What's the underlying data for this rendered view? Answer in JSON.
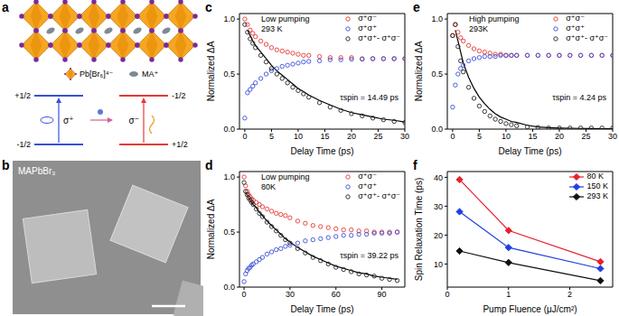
{
  "diagram": {
    "panel": "a",
    "key_items": [
      "Pb[Br₆]⁴⁻",
      "MA⁺"
    ],
    "left": {
      "upper": "+1/2",
      "lower": "-1/2",
      "transition": "σ⁺"
    },
    "right": {
      "upper": "-1/2",
      "lower": "+1/2",
      "transition": "σ⁻"
    }
  },
  "image": {
    "panel": "b",
    "label": "MAPbBr₃"
  },
  "chart_data": [
    {
      "panel": "c",
      "type": "scatter",
      "annotation": [
        "Low pumping",
        "293 K"
      ],
      "fit_annotation": "τspin = 14.49 ps",
      "x_label": "Delay Time (ps)",
      "y_label": "Normalized ΔA",
      "xlim": [
        -1,
        30
      ],
      "xticks": [
        0,
        5,
        10,
        15,
        20,
        25,
        30
      ],
      "ylim": [
        0,
        1.05
      ],
      "yticks": [
        {
          "value": 0,
          "label": "0.0"
        },
        0.5,
        {
          "value": 1,
          "label": "1.0"
        }
      ],
      "legend": "upper right",
      "x": [
        0,
        0.5,
        1,
        1.5,
        2,
        3,
        4,
        5,
        6,
        7,
        8,
        9,
        10,
        11,
        12,
        14,
        16,
        18,
        20,
        22,
        24,
        26,
        28,
        30
      ],
      "series": [
        {
          "name": "σ⁺σ⁻",
          "color": "#e53935",
          "marker": "open_circle",
          "values": [
            1.0,
            0.95,
            0.9,
            0.87,
            0.84,
            0.8,
            0.77,
            0.74,
            0.72,
            0.71,
            0.7,
            0.69,
            0.68,
            0.67,
            0.67,
            0.66,
            0.65,
            0.65,
            0.65,
            0.64,
            0.64,
            0.64,
            0.64,
            0.64
          ]
        },
        {
          "name": "σ⁺σ⁺",
          "color": "#3a4fd8",
          "marker": "open_circle",
          "values": [
            0.1,
            0.33,
            0.36,
            0.39,
            0.42,
            0.46,
            0.5,
            0.53,
            0.55,
            0.57,
            0.58,
            0.59,
            0.6,
            0.61,
            0.615,
            0.62,
            0.63,
            0.63,
            0.635,
            0.635,
            0.64,
            0.64,
            0.64,
            0.64
          ]
        },
        {
          "name": "σ⁺σ⁺- σ⁺σ⁻",
          "color": "#222222",
          "marker": "open_circle",
          "values": [
            0.95,
            0.88,
            0.82,
            0.78,
            0.74,
            0.67,
            0.61,
            0.55,
            0.5,
            0.46,
            0.42,
            0.38,
            0.35,
            0.32,
            0.29,
            0.24,
            0.2,
            0.17,
            0.14,
            0.12,
            0.1,
            0.085,
            0.07,
            0.06
          ]
        },
        {
          "type": "line",
          "color": "#000000",
          "values": [
            null,
            0.9,
            0.85,
            0.8,
            0.76,
            0.7,
            0.64,
            0.58,
            0.53,
            0.49,
            0.45,
            0.41,
            0.37,
            0.34,
            0.31,
            0.26,
            0.22,
            0.18,
            0.15,
            0.13,
            0.11,
            0.09,
            0.08,
            0.065
          ]
        }
      ]
    },
    {
      "panel": "d",
      "type": "scatter",
      "annotation": [
        "Low pumping",
        "80K"
      ],
      "fit_annotation": "τspin = 39.22 ps",
      "x_label": "Delay Time (ps)",
      "y_label": "Normalized ΔA",
      "xlim": [
        -3,
        105
      ],
      "xticks": [
        0,
        30,
        60,
        90
      ],
      "ylim": [
        0,
        1.05
      ],
      "yticks": [
        {
          "value": 0,
          "label": "0.0"
        },
        0.5,
        {
          "value": 1,
          "label": "1.0"
        }
      ],
      "legend": "upper right",
      "x": [
        0,
        1,
        2,
        3,
        4,
        5,
        6,
        8,
        10,
        12,
        15,
        18,
        21,
        24,
        27,
        30,
        35,
        40,
        45,
        50,
        55,
        60,
        65,
        70,
        75,
        80,
        85,
        90,
        95,
        100
      ],
      "series": [
        {
          "name": "σ⁺σ⁻",
          "color": "#e53935",
          "marker": "open_circle",
          "values": [
            1.0,
            0.92,
            0.87,
            0.84,
            0.82,
            0.8,
            0.79,
            0.77,
            0.75,
            0.73,
            0.71,
            0.69,
            0.67,
            0.66,
            0.65,
            0.63,
            0.6,
            0.58,
            0.56,
            0.55,
            0.54,
            0.53,
            0.52,
            0.52,
            0.51,
            0.51,
            0.5,
            0.5,
            0.5,
            0.5
          ]
        },
        {
          "name": "σ⁺σ⁺",
          "color": "#3a4fd8",
          "marker": "open_circle",
          "values": [
            0.05,
            0.12,
            0.15,
            0.17,
            0.18,
            0.2,
            0.21,
            0.23,
            0.25,
            0.27,
            0.3,
            0.32,
            0.34,
            0.35,
            0.37,
            0.38,
            0.4,
            0.42,
            0.43,
            0.44,
            0.45,
            0.46,
            0.47,
            0.47,
            0.48,
            0.48,
            0.49,
            0.49,
            0.49,
            0.5
          ]
        },
        {
          "name": "σ⁺σ⁺- σ⁺σ⁻",
          "color": "#222222",
          "marker": "open_circle",
          "values": [
            0.95,
            0.87,
            0.84,
            0.81,
            0.79,
            0.77,
            0.75,
            0.71,
            0.67,
            0.64,
            0.59,
            0.55,
            0.51,
            0.47,
            0.43,
            0.4,
            0.35,
            0.31,
            0.27,
            0.24,
            0.21,
            0.18,
            0.16,
            0.14,
            0.12,
            0.11,
            0.1,
            0.08,
            0.07,
            0.06
          ]
        },
        {
          "type": "line",
          "color": "#000000",
          "values": [
            null,
            0.86,
            0.84,
            0.81,
            0.79,
            0.77,
            0.75,
            0.72,
            0.68,
            0.65,
            0.6,
            0.56,
            0.52,
            0.48,
            0.44,
            0.41,
            0.36,
            0.32,
            0.28,
            0.25,
            0.22,
            0.19,
            0.17,
            0.15,
            0.13,
            0.12,
            0.1,
            0.09,
            0.08,
            0.07
          ]
        }
      ]
    },
    {
      "panel": "e",
      "type": "scatter",
      "annotation": [
        "High pumping",
        "293K"
      ],
      "fit_annotation": "τspin = 4.24 ps",
      "x_label": "Delay Time (ps)",
      "y_label": "Normalized ΔA",
      "xlim": [
        -1,
        30
      ],
      "xticks": [
        0,
        5,
        10,
        15,
        20,
        25,
        30
      ],
      "ylim": [
        0,
        1.05
      ],
      "yticks": [
        {
          "value": 0,
          "label": "0.0"
        },
        0.5,
        {
          "value": 1,
          "label": "1.0"
        }
      ],
      "legend": "upper right",
      "x": [
        0,
        0.5,
        1,
        1.5,
        2,
        3,
        4,
        5,
        6,
        7,
        8,
        9,
        10,
        11,
        12,
        14,
        16,
        18,
        20,
        22,
        24,
        26,
        28,
        30
      ],
      "series": [
        {
          "name": "σ⁺σ⁻",
          "color": "#e53935",
          "marker": "open_circle",
          "values": [
            0.85,
            0.95,
            0.88,
            0.83,
            0.8,
            0.76,
            0.73,
            0.71,
            0.7,
            0.69,
            0.68,
            0.68,
            0.67,
            0.67,
            0.67,
            0.67,
            0.67,
            0.67,
            0.67,
            0.67,
            0.67,
            0.67,
            0.67,
            0.67
          ]
        },
        {
          "name": "σ⁺σ⁺",
          "color": "#3a4fd8",
          "marker": "open_circle",
          "values": [
            0.2,
            0.4,
            0.5,
            0.55,
            0.58,
            0.62,
            0.64,
            0.65,
            0.66,
            0.66,
            0.66,
            0.67,
            0.67,
            0.67,
            0.67,
            0.67,
            0.67,
            0.67,
            0.67,
            0.67,
            0.67,
            0.67,
            0.67,
            0.67
          ]
        },
        {
          "name": "σ⁺σ⁺- σ⁺σ⁻",
          "color": "#222222",
          "marker": "open_circle",
          "values": [
            0.85,
            0.95,
            0.75,
            0.62,
            0.52,
            0.38,
            0.28,
            0.21,
            0.16,
            0.12,
            0.09,
            0.07,
            0.05,
            0.04,
            0.03,
            0.02,
            0.015,
            0.01,
            0.01,
            0.01,
            0.01,
            0.01,
            0.01,
            0.01
          ]
        },
        {
          "type": "line",
          "color": "#000000",
          "values": [
            null,
            0.9,
            0.8,
            0.7,
            0.6,
            0.47,
            0.37,
            0.29,
            0.23,
            0.18,
            0.14,
            0.11,
            0.09,
            0.07,
            0.06,
            0.035,
            0.02,
            0.014,
            0.01,
            0.008,
            0.006,
            0.005,
            0.004,
            0.003
          ]
        }
      ]
    },
    {
      "panel": "f",
      "type": "line",
      "x_label": "Pump Fluence (μJ/cm²)",
      "y_label": "Spin Relaxation Time (ps)",
      "xlim": [
        0,
        2.7
      ],
      "xticks": [
        0,
        1,
        2
      ],
      "ylim": [
        2,
        42
      ],
      "yticks": [
        10,
        20,
        30,
        40
      ],
      "legend": "upper right",
      "x": [
        0.2,
        1,
        2.5
      ],
      "series": [
        {
          "name": "80 K",
          "color": "#e8212f",
          "marker": "diamond",
          "values": [
            39.22,
            21.6,
            10.8
          ]
        },
        {
          "name": "150 K",
          "color": "#1f3fe0",
          "marker": "diamond",
          "values": [
            28.1,
            15.7,
            8.4
          ]
        },
        {
          "name": "293 K",
          "color": "#111111",
          "marker": "diamond",
          "values": [
            14.49,
            10.5,
            4.24
          ]
        }
      ]
    }
  ]
}
